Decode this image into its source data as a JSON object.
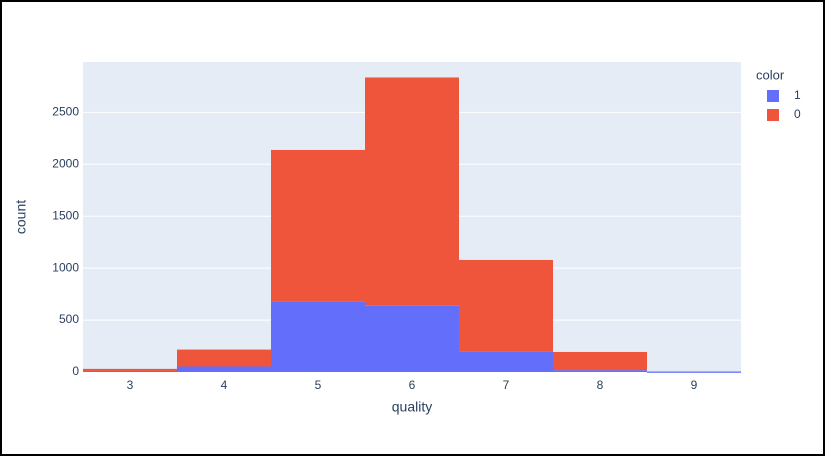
{
  "chart_data": {
    "type": "histogram",
    "x_label": "quality",
    "y_label": "count",
    "legend_title": "color",
    "legend_position": "right",
    "bins": [
      2.5,
      3.5,
      4.5,
      5.5,
      6.5,
      7.5,
      8.5,
      9.5
    ],
    "series": [
      {
        "name": "1",
        "color": "#636efa",
        "values": [
          10,
          53,
          681,
          638,
          199,
          18,
          0
        ]
      },
      {
        "name": "0",
        "color": "#ef553b",
        "values": [
          20,
          163,
          1457,
          2198,
          880,
          175,
          5
        ]
      }
    ],
    "stacked": true,
    "xlim": [
      2.5,
      9.5
    ],
    "xticks": [
      3,
      4,
      5,
      6,
      7,
      8,
      9
    ],
    "ylim": [
      0,
      2985
    ],
    "yticks": [
      0,
      500,
      1000,
      1500,
      2000,
      2500
    ],
    "grid": true
  }
}
